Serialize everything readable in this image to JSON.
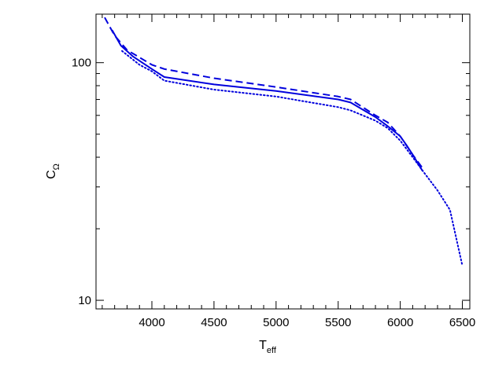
{
  "chart_data": {
    "type": "line",
    "title": "",
    "xlabel": {
      "main": "T",
      "sub": "eff"
    },
    "ylabel": {
      "main": "C",
      "sub": "Ω"
    },
    "xlim": [
      3550,
      6560
    ],
    "ylim": [
      9.2,
      160
    ],
    "yscale": "log",
    "x_ticks": [
      4000,
      4500,
      5000,
      5500,
      6000,
      6500
    ],
    "x_tick_labels": [
      "4000",
      "4500",
      "5000",
      "5500",
      "6000",
      "6500"
    ],
    "y_major_ticks": [
      10,
      100
    ],
    "y_major_tick_labels": [
      "10",
      "100"
    ],
    "y_minor_ticks": [
      20,
      30,
      40,
      50,
      60,
      70,
      80,
      90
    ],
    "grid": false,
    "legend": "none",
    "series": [
      {
        "style": "solid",
        "color": "#0000dd",
        "points": [
          [
            3680,
            137
          ],
          [
            3750,
            118
          ],
          [
            3850,
            106
          ],
          [
            4000,
            94
          ],
          [
            4100,
            87
          ],
          [
            4500,
            81
          ],
          [
            5000,
            76
          ],
          [
            5500,
            70
          ],
          [
            5600,
            68
          ],
          [
            5800,
            59
          ],
          [
            5900,
            54
          ],
          [
            6000,
            49
          ],
          [
            6050,
            45
          ],
          [
            6100,
            41
          ],
          [
            6180,
            35
          ]
        ]
      },
      {
        "style": "dashed",
        "color": "#0000dd",
        "points": [
          [
            3620,
            155
          ],
          [
            3700,
            130
          ],
          [
            3800,
            113
          ],
          [
            4000,
            98
          ],
          [
            4100,
            94
          ],
          [
            4500,
            86
          ],
          [
            5000,
            79
          ],
          [
            5500,
            72
          ],
          [
            5600,
            70
          ],
          [
            5800,
            60
          ],
          [
            5900,
            56
          ],
          [
            6000,
            49
          ],
          [
            6100,
            41
          ],
          [
            6180,
            36
          ]
        ]
      },
      {
        "style": "dotted",
        "color": "#0000dd",
        "points": [
          [
            3760,
            112
          ],
          [
            3900,
            98
          ],
          [
            4000,
            92
          ],
          [
            4100,
            84
          ],
          [
            4500,
            77
          ],
          [
            5000,
            72
          ],
          [
            5500,
            65
          ],
          [
            5600,
            63
          ],
          [
            5800,
            57
          ],
          [
            5900,
            53
          ],
          [
            6000,
            47
          ],
          [
            6100,
            40
          ],
          [
            6200,
            34
          ],
          [
            6300,
            29
          ],
          [
            6400,
            24
          ],
          [
            6500,
            14
          ]
        ]
      }
    ]
  }
}
